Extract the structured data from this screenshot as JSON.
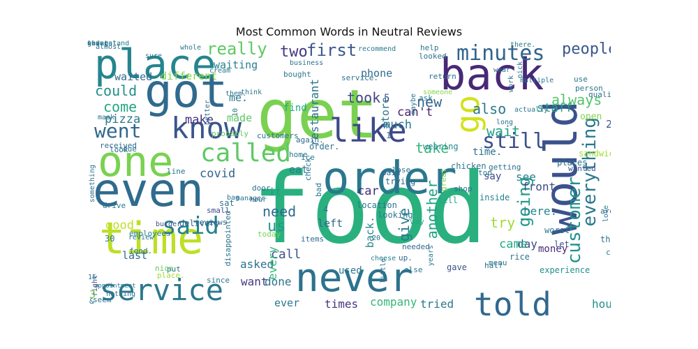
{
  "title": "Most Common Words in Neutral Reviews",
  "palette": "viridis",
  "words": [
    {
      "text": "food",
      "color": "#2ab07f"
    },
    {
      "text": "get",
      "color": "#7ad151"
    },
    {
      "text": "would",
      "color": "#3b528b"
    },
    {
      "text": "order",
      "color": "#2a788e"
    },
    {
      "text": "ordered",
      "color": "#21918c"
    },
    {
      "text": "back",
      "color": "#482878"
    },
    {
      "text": "never",
      "color": "#2c728e"
    },
    {
      "text": "got",
      "color": "#306a8e"
    },
    {
      "text": "even",
      "color": "#2f6b8e"
    },
    {
      "text": "one",
      "color": "#7ad151"
    },
    {
      "text": "time",
      "color": "#bddf26"
    },
    {
      "text": "place",
      "color": "#25858e"
    },
    {
      "text": "service",
      "color": "#2a788e"
    },
    {
      "text": "like",
      "color": "#3e4989"
    },
    {
      "text": "told",
      "color": "#31688e"
    },
    {
      "text": "know",
      "color": "#39568c"
    },
    {
      "text": "said",
      "color": "#26828e"
    },
    {
      "text": "minutes",
      "color": "#32648e"
    },
    {
      "text": "called",
      "color": "#5ec962"
    },
    {
      "text": "go",
      "color": "#d2e21b"
    },
    {
      "text": "went",
      "color": "#31688e"
    },
    {
      "text": "still",
      "color": "#3b528b"
    },
    {
      "text": "customer",
      "color": "#21918c"
    },
    {
      "text": "going",
      "color": "#1f9a8a"
    },
    {
      "text": "everything",
      "color": "#2a788e"
    },
    {
      "text": "really",
      "color": "#5ec962"
    },
    {
      "text": "two",
      "color": "#443983"
    },
    {
      "text": "first",
      "color": "#38598c"
    },
    {
      "text": "people",
      "color": "#39568c"
    },
    {
      "text": "could",
      "color": "#21918c"
    },
    {
      "text": "waited",
      "color": "#2f6b8e"
    },
    {
      "text": "different",
      "color": "#86d549"
    },
    {
      "text": "waiting",
      "color": "#277f8e"
    },
    {
      "text": "come",
      "color": "#22a884"
    },
    {
      "text": "pizza",
      "color": "#2a788e"
    },
    {
      "text": "make",
      "color": "#46337e"
    },
    {
      "text": "took",
      "color": "#414487"
    },
    {
      "text": "also",
      "color": "#2a788e"
    },
    {
      "text": "always",
      "color": "#52c569"
    },
    {
      "text": "staff",
      "color": "#1fa088"
    },
    {
      "text": "new",
      "color": "#32648e"
    },
    {
      "text": "wait",
      "color": "#20a486"
    },
    {
      "text": "take",
      "color": "#35b779"
    },
    {
      "text": "can't",
      "color": "#481f70"
    },
    {
      "text": "much",
      "color": "#2a788e"
    },
    {
      "text": "covid",
      "color": "#32648e"
    },
    {
      "text": "car",
      "color": "#472c7a"
    },
    {
      "text": "need",
      "color": "#2f6b8e"
    },
    {
      "text": "us",
      "color": "#1f9a8a"
    },
    {
      "text": "good",
      "color": "#bddf26"
    },
    {
      "text": "restaurant",
      "color": "#2c728e"
    },
    {
      "text": "give",
      "color": "#2a788e"
    },
    {
      "text": "another",
      "color": "#20a486"
    },
    {
      "text": "try",
      "color": "#a0da39"
    },
    {
      "text": "see",
      "color": "#277f8e"
    },
    {
      "text": "front",
      "color": "#3e4989"
    },
    {
      "text": "here.",
      "color": "#25858e"
    },
    {
      "text": "day",
      "color": "#3e4989"
    },
    {
      "text": "came",
      "color": "#22a884"
    },
    {
      "text": "hours",
      "color": "#21918c"
    },
    {
      "text": "asked",
      "color": "#2c728e"
    },
    {
      "text": "call",
      "color": "#3b528b"
    },
    {
      "text": "every",
      "color": "#35b779"
    },
    {
      "text": "last",
      "color": "#2f6b8e"
    },
    {
      "text": "want",
      "color": "#443983"
    },
    {
      "text": "done",
      "color": "#2c728e"
    },
    {
      "text": "ever",
      "color": "#2a788e"
    },
    {
      "text": "times",
      "color": "#46337e"
    },
    {
      "text": "tried",
      "color": "#2a788e"
    },
    {
      "text": "company",
      "color": "#35b779"
    },
    {
      "text": "phone",
      "color": "#2f6b8e"
    },
    {
      "text": "store",
      "color": "#2c728e"
    },
    {
      "text": "find",
      "color": "#22a884"
    },
    {
      "text": "made",
      "color": "#5ec962"
    },
    {
      "text": "me.",
      "color": "#2a788e"
    },
    {
      "text": "time.",
      "color": "#2c728e"
    },
    {
      "text": "say",
      "color": "#3e4989"
    },
    {
      "text": "left",
      "color": "#31688e"
    },
    {
      "text": "back.",
      "color": "#25858e"
    },
    {
      "text": "it",
      "color": "#1f9a8a"
    },
    {
      "text": "5",
      "color": "#3b528b"
    },
    {
      "text": "2",
      "color": "#3b528b"
    },
    {
      "text": "eat",
      "color": "#2a788e"
    },
    {
      "text": "3",
      "color": "#7ad151"
    },
    {
      "text": "&",
      "color": "#2c728e"
    },
    {
      "text": "30",
      "color": "#2a788e"
    },
    {
      "text": "food.",
      "color": "#2c728e"
    },
    {
      "text": "used",
      "color": "#2a788e"
    },
    {
      "text": "tell",
      "color": "#22a884"
    },
    {
      "text": "money",
      "color": "#482878"
    },
    {
      "text": "experience",
      "color": "#21918c"
    },
    {
      "text": "worst",
      "color": "#2a788e"
    },
    {
      "text": "let",
      "color": "#3b528b"
    },
    {
      "text": "around",
      "color": "#32648e"
    },
    {
      "text": "things",
      "color": "#2c728e"
    },
    {
      "text": "coming",
      "color": "#2a788e"
    },
    {
      "text": "love",
      "color": "#2a788e"
    },
    {
      "text": "away",
      "color": "#277f8e"
    },
    {
      "text": "open",
      "color": "#86d549"
    },
    {
      "text": "sandwich",
      "color": "#a0da39"
    },
    {
      "text": "wanted",
      "color": "#3b528b"
    },
    {
      "text": "places",
      "color": "#2c728e"
    },
    {
      "text": "getting",
      "color": "#2f6b8e"
    },
    {
      "text": "top",
      "color": "#2c728e"
    },
    {
      "text": "inside",
      "color": "#277f8e"
    },
    {
      "text": "shop",
      "color": "#2c728e"
    },
    {
      "text": "great",
      "color": "#7ad151"
    },
    {
      "text": "chicken",
      "color": "#2a788e"
    },
    {
      "text": "wearing",
      "color": "#25858e"
    },
    {
      "text": "close",
      "color": "#2a788e"
    },
    {
      "text": "paid",
      "color": "#32648e"
    },
    {
      "text": "1",
      "color": "#2c728e"
    },
    {
      "text": "trying",
      "color": "#2f6b8e"
    },
    {
      "text": "bad",
      "color": "#2a788e"
    },
    {
      "text": "4",
      "color": "#2c728e"
    },
    {
      "text": "location",
      "color": "#2c728e"
    },
    {
      "text": "looking",
      "color": "#2a788e"
    },
    {
      "text": "way",
      "color": "#22a884"
    },
    {
      "text": "else",
      "color": "#2a788e"
    },
    {
      "text": "gave",
      "color": "#3b528b"
    },
    {
      "text": "up.",
      "color": "#32648e"
    },
    {
      "text": "needed",
      "color": "#31688e"
    },
    {
      "text": "half",
      "color": "#2f6b8e"
    },
    {
      "text": "menu",
      "color": "#2a788e"
    },
    {
      "text": "rice",
      "color": "#2c728e"
    },
    {
      "text": "years",
      "color": "#2a788e"
    },
    {
      "text": "little",
      "color": "#2c728e"
    },
    {
      "text": "cheese",
      "color": "#277f8e"
    },
    {
      "text": "20",
      "color": "#2c728e"
    },
    {
      "text": "items",
      "color": "#2f6b8e"
    },
    {
      "text": "today",
      "color": "#7ad151"
    },
    {
      "text": "manager",
      "color": "#2a788e"
    },
    {
      "text": "disappointed",
      "color": "#2c728e"
    },
    {
      "text": "place.",
      "color": "#a0da39"
    },
    {
      "text": "put",
      "color": "#2c728e"
    },
    {
      "text": "since",
      "color": "#2a788e"
    },
    {
      "text": "nice",
      "color": "#5ec962"
    },
    {
      "text": "employees",
      "color": "#277f8e"
    },
    {
      "text": "review",
      "color": "#2a788e"
    },
    {
      "text": "15",
      "color": "#2c728e"
    },
    {
      "text": "appointment",
      "color": "#2a788e"
    },
    {
      "text": "seem",
      "color": "#2c728e"
    },
    {
      "text": "right",
      "color": "#3b528b"
    },
    {
      "text": "nothing",
      "color": "#2c728e"
    },
    {
      "text": "drive",
      "color": "#2a788e"
    },
    {
      "text": "burger",
      "color": "#3b528b"
    },
    {
      "text": "delivery",
      "color": "#32648e"
    },
    {
      "text": "reviews",
      "color": "#2f6b8e"
    },
    {
      "text": "sat",
      "color": "#2c728e"
    },
    {
      "text": "small",
      "color": "#3e4989"
    },
    {
      "text": "bag",
      "color": "#2a788e"
    },
    {
      "text": "hour",
      "color": "#32648e"
    },
    {
      "text": "door",
      "color": "#2c728e"
    },
    {
      "text": "line",
      "color": "#2a788e"
    },
    {
      "text": "something",
      "color": "#2c728e"
    },
    {
      "text": "due",
      "color": "#2a788e"
    },
    {
      "text": "received",
      "color": "#2f6b8e"
    },
    {
      "text": "look",
      "color": "#2c728e"
    },
    {
      "text": "probably",
      "color": "#5ec962"
    },
    {
      "text": "customers",
      "color": "#2c728e"
    },
    {
      "text": "home",
      "color": "#2a788e"
    },
    {
      "text": "again.",
      "color": "#2f6b8e"
    },
    {
      "text": "order.",
      "color": "#2c728e"
    },
    {
      "text": "ice",
      "color": "#2a788e"
    },
    {
      "text": "check",
      "color": "#2c728e"
    },
    {
      "text": "10",
      "color": "#2a788e"
    },
    {
      "text": "better",
      "color": "#2f6b8e"
    },
    {
      "text": "them.",
      "color": "#2c728e"
    },
    {
      "text": "think",
      "color": "#2a788e"
    },
    {
      "text": "mask",
      "color": "#2c728e"
    },
    {
      "text": "cream",
      "color": "#2a788e"
    },
    {
      "text": "sure",
      "color": "#2c728e"
    },
    {
      "text": "whole",
      "color": "#2a788e"
    },
    {
      "text": "almost",
      "color": "#2c728e"
    },
    {
      "text": "recommend",
      "color": "#2a788e"
    },
    {
      "text": "business",
      "color": "#2c728e"
    },
    {
      "text": "service.",
      "color": "#2c728e"
    },
    {
      "text": "bought",
      "color": "#2a788e"
    },
    {
      "text": "return",
      "color": "#2f6b8e"
    },
    {
      "text": "someone",
      "color": "#86d549"
    },
    {
      "text": "help",
      "color": "#2a788e"
    },
    {
      "text": "looked",
      "color": "#2c728e"
    },
    {
      "text": "ask",
      "color": "#2a788e"
    },
    {
      "text": "maybe",
      "color": "#2c728e"
    },
    {
      "text": "there.",
      "color": "#2a788e"
    },
    {
      "text": "wear",
      "color": "#2c728e"
    },
    {
      "text": "pick",
      "color": "#2a788e"
    },
    {
      "text": "work",
      "color": "#2c728e"
    },
    {
      "text": "multiple",
      "color": "#2a788e"
    },
    {
      "text": "use",
      "color": "#2c728e"
    },
    {
      "text": "person",
      "color": "#2a788e"
    },
    {
      "text": "quality",
      "color": "#2c728e"
    },
    {
      "text": "actually",
      "color": "#2a788e"
    },
    {
      "text": "long",
      "color": "#2c728e"
    },
    {
      "text": "thing",
      "color": "#2a788e"
    },
    {
      "text": "given",
      "color": "#2c728e"
    },
    {
      "text": "several",
      "color": "#2a788e"
    },
    {
      "text": "least",
      "color": "#2c728e"
    },
    {
      "text": "understand",
      "color": "#2a788e"
    }
  ]
}
